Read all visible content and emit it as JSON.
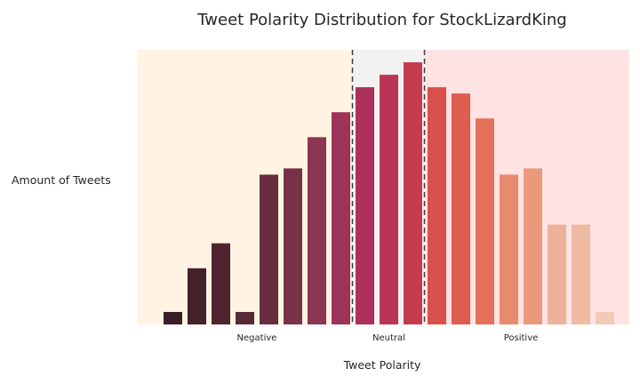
{
  "chart_data": {
    "type": "bar",
    "title": "Tweet Polarity Distribution for StockLizardKing",
    "xlabel": "Tweet Polarity",
    "ylabel": "Amount of Tweets",
    "x_tick_labels": [
      "Negative",
      "Neutral",
      "Positive"
    ],
    "values": [
      2,
      9,
      13,
      2,
      24,
      25,
      30,
      34,
      38,
      40,
      42,
      38,
      37,
      33,
      24,
      25,
      16,
      16,
      2
    ],
    "ylim": [
      0,
      44
    ],
    "grid": false,
    "legend": "none",
    "regions": [
      {
        "label": "Negative",
        "from_bar": 0,
        "to_bar": 8,
        "color": "#fff4e3"
      },
      {
        "label": "Neutral",
        "from_bar": 8,
        "to_bar": 11,
        "color": "#f2f2f2"
      },
      {
        "label": "Positive",
        "from_bar": 11,
        "to_bar": 19,
        "color": "#ffe3e3"
      }
    ],
    "divider_lines_at_bar_boundary": [
      8,
      11
    ],
    "colors": [
      "#3a1e26",
      "#452229",
      "#4e252f",
      "#582935",
      "#6a2d3f",
      "#783247",
      "#8c3450",
      "#9e345a",
      "#ad305c",
      "#b93556",
      "#c43a4f",
      "#db4f4a",
      "#df5c50",
      "#e47059",
      "#e88a6d",
      "#ea997a",
      "#edb29b",
      "#efbaa2",
      "#f2cbb8"
    ]
  }
}
